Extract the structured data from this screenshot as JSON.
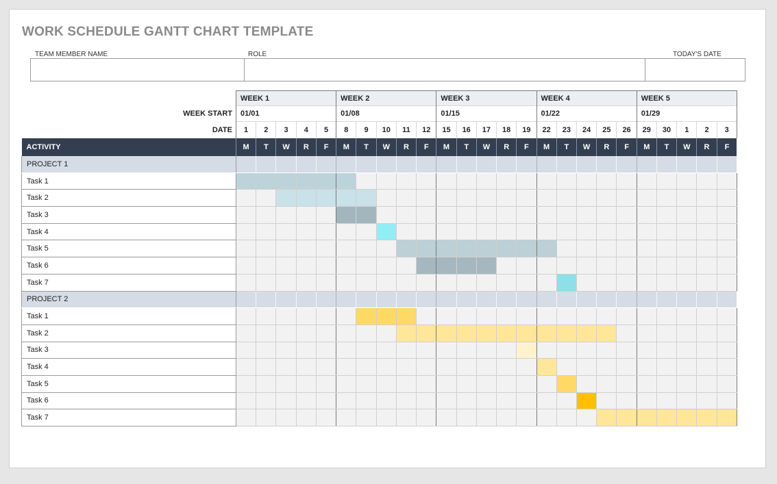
{
  "title": "WORK SCHEDULE GANTT CHART TEMPLATE",
  "info": {
    "team_member_label": "TEAM MEMBER NAME",
    "team_member_value": "",
    "role_label": "ROLE",
    "role_value": "",
    "todays_date_label": "TODAY'S DATE",
    "todays_date_value": ""
  },
  "week_start_label": "WEEK START",
  "date_label": "DATE",
  "activity_label": "ACTIVITY",
  "weeks": [
    {
      "label": "WEEK 1",
      "start": "01/01"
    },
    {
      "label": "WEEK 2",
      "start": "01/08"
    },
    {
      "label": "WEEK 3",
      "start": "01/15"
    },
    {
      "label": "WEEK 4",
      "start": "01/22"
    },
    {
      "label": "WEEK 5",
      "start": "01/29"
    }
  ],
  "dates": [
    "1",
    "2",
    "3",
    "4",
    "5",
    "8",
    "9",
    "10",
    "11",
    "12",
    "15",
    "16",
    "17",
    "18",
    "19",
    "22",
    "23",
    "24",
    "25",
    "26",
    "29",
    "30",
    "1",
    "2",
    "3"
  ],
  "day_letters": [
    "M",
    "T",
    "W",
    "R",
    "F"
  ],
  "projects": [
    {
      "name": "PROJECT 1",
      "tasks": [
        {
          "name": "Task 1",
          "start": 0,
          "span": 6,
          "color": "#bcd3da"
        },
        {
          "name": "Task 2",
          "start": 2,
          "span": 5,
          "color": "#c9e1e9"
        },
        {
          "name": "Task 3",
          "start": 5,
          "span": 2,
          "color": "#a3b6be"
        },
        {
          "name": "Task 4",
          "start": 7,
          "span": 1,
          "color": "#93edf5"
        },
        {
          "name": "Task 5",
          "start": 8,
          "span": 8,
          "color": "#bcd0d6"
        },
        {
          "name": "Task 6",
          "start": 9,
          "span": 4,
          "color": "#a6b7bf"
        },
        {
          "name": "Task 7",
          "start": 16,
          "span": 1,
          "color": "#8ee0e8"
        }
      ]
    },
    {
      "name": "PROJECT 2",
      "tasks": [
        {
          "name": "Task 1",
          "start": 6,
          "span": 3,
          "color": "#ffd966"
        },
        {
          "name": "Task 2",
          "start": 8,
          "span": 11,
          "color": "#ffe699"
        },
        {
          "name": "Task 3",
          "start": 14,
          "span": 1,
          "color": "#fff2cc"
        },
        {
          "name": "Task 4",
          "start": 15,
          "span": 1,
          "color": "#ffe699"
        },
        {
          "name": "Task 5",
          "start": 16,
          "span": 1,
          "color": "#ffd966"
        },
        {
          "name": "Task 6",
          "start": 17,
          "span": 1,
          "color": "#ffc000"
        },
        {
          "name": "Task 7",
          "start": 18,
          "span": 7,
          "color": "#ffe699"
        }
      ]
    }
  ]
}
